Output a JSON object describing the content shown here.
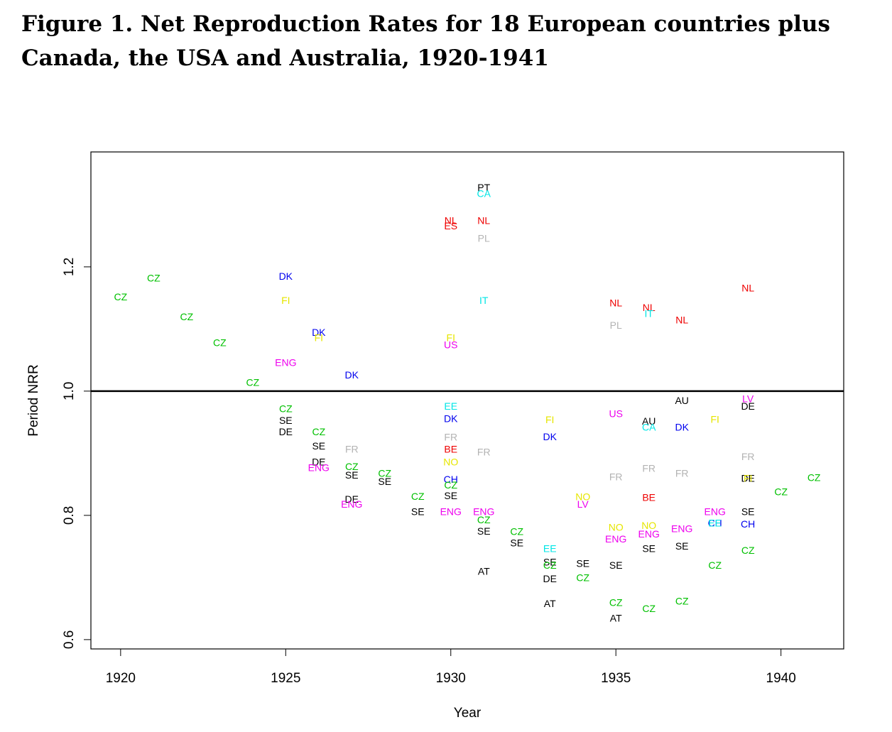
{
  "title": "Figure 1. Net Reproduction Rates for 18 European countries plus Canada, the USA and Australia, 1920-1941",
  "chart_data": {
    "type": "scatter",
    "title": "Figure 1. Net Reproduction Rates for 18 European countries plus Canada, the USA and Australia, 1920-1941",
    "xlabel": "Year",
    "ylabel": "Period NRR",
    "xlim": [
      1919.1,
      1941.9
    ],
    "ylim": [
      0.585,
      1.385
    ],
    "xticks": [
      1920,
      1925,
      1930,
      1935,
      1940
    ],
    "yticks": [
      0.6,
      0.8,
      1.0,
      1.2
    ],
    "ytick_labels": [
      "0.6",
      "0.8",
      "1.0",
      "1.2"
    ],
    "reference_line": 1.0,
    "grid": false,
    "legend": "none (country codes plotted as point labels)",
    "colors": {
      "CZ": "#00c000",
      "SE": "#000000",
      "DE": "#000000",
      "AT": "#000000",
      "AU": "#000000",
      "PT": "#000000",
      "DK": "#0000ee",
      "CH": "#0000ee",
      "FI": "#e6e600",
      "NO": "#e6e600",
      "ENG": "#ee00ee",
      "US": "#ee00ee",
      "LV": "#ee00ee",
      "NL": "#ee0000",
      "ES": "#ee0000",
      "BE": "#ee0000",
      "FR": "#b3b3b3",
      "PL": "#b3b3b3",
      "EE": "#00e6e6",
      "IT": "#00e6e6",
      "CA": "#00e6e6"
    },
    "points": [
      {
        "label": "CZ",
        "x": 1920,
        "y": 1.152
      },
      {
        "label": "CZ",
        "x": 1921,
        "y": 1.182
      },
      {
        "label": "CZ",
        "x": 1922,
        "y": 1.12
      },
      {
        "label": "CZ",
        "x": 1923,
        "y": 1.078
      },
      {
        "label": "CZ",
        "x": 1924,
        "y": 1.014
      },
      {
        "label": "DK",
        "x": 1925,
        "y": 1.185
      },
      {
        "label": "FI",
        "x": 1925,
        "y": 1.146
      },
      {
        "label": "ENG",
        "x": 1925,
        "y": 1.046
      },
      {
        "label": "CZ",
        "x": 1925,
        "y": 0.972
      },
      {
        "label": "SE",
        "x": 1925,
        "y": 0.953
      },
      {
        "label": "DE",
        "x": 1925,
        "y": 0.935
      },
      {
        "label": "DK",
        "x": 1926,
        "y": 1.095
      },
      {
        "label": "FI",
        "x": 1926,
        "y": 1.086
      },
      {
        "label": "CZ",
        "x": 1926,
        "y": 0.935
      },
      {
        "label": "SE",
        "x": 1926,
        "y": 0.912
      },
      {
        "label": "DE",
        "x": 1926,
        "y": 0.886
      },
      {
        "label": "ENG",
        "x": 1926,
        "y": 0.877
      },
      {
        "label": "DK",
        "x": 1927,
        "y": 1.026
      },
      {
        "label": "FR",
        "x": 1927,
        "y": 0.907
      },
      {
        "label": "CZ",
        "x": 1927,
        "y": 0.879
      },
      {
        "label": "SE",
        "x": 1927,
        "y": 0.865
      },
      {
        "label": "DE",
        "x": 1927,
        "y": 0.826
      },
      {
        "label": "ENG",
        "x": 1927,
        "y": 0.818
      },
      {
        "label": "CZ",
        "x": 1928,
        "y": 0.868
      },
      {
        "label": "SE",
        "x": 1928,
        "y": 0.855
      },
      {
        "label": "CZ",
        "x": 1929,
        "y": 0.831
      },
      {
        "label": "SE",
        "x": 1929,
        "y": 0.806
      },
      {
        "label": "NL",
        "x": 1930,
        "y": 1.275
      },
      {
        "label": "ES",
        "x": 1930,
        "y": 1.266
      },
      {
        "label": "FI",
        "x": 1930,
        "y": 1.086
      },
      {
        "label": "US",
        "x": 1930,
        "y": 1.075
      },
      {
        "label": "EE",
        "x": 1930,
        "y": 0.976
      },
      {
        "label": "DK",
        "x": 1930,
        "y": 0.956
      },
      {
        "label": "FR",
        "x": 1930,
        "y": 0.926
      },
      {
        "label": "BE",
        "x": 1930,
        "y": 0.907
      },
      {
        "label": "NO",
        "x": 1930,
        "y": 0.886
      },
      {
        "label": "CH",
        "x": 1930,
        "y": 0.858
      },
      {
        "label": "CZ",
        "x": 1930,
        "y": 0.849
      },
      {
        "label": "SE",
        "x": 1930,
        "y": 0.832
      },
      {
        "label": "ENG",
        "x": 1930,
        "y": 0.806
      },
      {
        "label": "PT",
        "x": 1931,
        "y": 1.328
      },
      {
        "label": "CA",
        "x": 1931,
        "y": 1.318
      },
      {
        "label": "NL",
        "x": 1931,
        "y": 1.275
      },
      {
        "label": "PL",
        "x": 1931,
        "y": 1.246
      },
      {
        "label": "IT",
        "x": 1931,
        "y": 1.146
      },
      {
        "label": "FR",
        "x": 1931,
        "y": 0.902
      },
      {
        "label": "ENG",
        "x": 1931,
        "y": 0.806
      },
      {
        "label": "CZ",
        "x": 1931,
        "y": 0.793
      },
      {
        "label": "SE",
        "x": 1931,
        "y": 0.775
      },
      {
        "label": "AT",
        "x": 1931,
        "y": 0.71
      },
      {
        "label": "CZ",
        "x": 1932,
        "y": 0.774
      },
      {
        "label": "SE",
        "x": 1932,
        "y": 0.756
      },
      {
        "label": "FI",
        "x": 1933,
        "y": 0.954
      },
      {
        "label": "DK",
        "x": 1933,
        "y": 0.927
      },
      {
        "label": "EE",
        "x": 1933,
        "y": 0.747
      },
      {
        "label": "SE",
        "x": 1933,
        "y": 0.725
      },
      {
        "label": "CZ",
        "x": 1933,
        "y": 0.72
      },
      {
        "label": "DE",
        "x": 1933,
        "y": 0.698
      },
      {
        "label": "AT",
        "x": 1933,
        "y": 0.658
      },
      {
        "label": "NO",
        "x": 1934,
        "y": 0.83
      },
      {
        "label": "LV",
        "x": 1934,
        "y": 0.818
      },
      {
        "label": "SE",
        "x": 1934,
        "y": 0.723
      },
      {
        "label": "CZ",
        "x": 1934,
        "y": 0.7
      },
      {
        "label": "NL",
        "x": 1935,
        "y": 1.142
      },
      {
        "label": "PL",
        "x": 1935,
        "y": 1.106
      },
      {
        "label": "US",
        "x": 1935,
        "y": 0.964
      },
      {
        "label": "FR",
        "x": 1935,
        "y": 0.862
      },
      {
        "label": "NO",
        "x": 1935,
        "y": 0.781
      },
      {
        "label": "ENG",
        "x": 1935,
        "y": 0.762
      },
      {
        "label": "SE",
        "x": 1935,
        "y": 0.72
      },
      {
        "label": "CZ",
        "x": 1935,
        "y": 0.66
      },
      {
        "label": "AT",
        "x": 1935,
        "y": 0.635
      },
      {
        "label": "NL",
        "x": 1936,
        "y": 1.135
      },
      {
        "label": "IT",
        "x": 1936,
        "y": 1.125
      },
      {
        "label": "AU",
        "x": 1936,
        "y": 0.952
      },
      {
        "label": "CA",
        "x": 1936,
        "y": 0.942
      },
      {
        "label": "FR",
        "x": 1936,
        "y": 0.876
      },
      {
        "label": "BE",
        "x": 1936,
        "y": 0.829
      },
      {
        "label": "NO",
        "x": 1936,
        "y": 0.784
      },
      {
        "label": "ENG",
        "x": 1936,
        "y": 0.77
      },
      {
        "label": "SE",
        "x": 1936,
        "y": 0.747
      },
      {
        "label": "CZ",
        "x": 1936,
        "y": 0.65
      },
      {
        "label": "NL",
        "x": 1937,
        "y": 1.115
      },
      {
        "label": "AU",
        "x": 1937,
        "y": 0.985
      },
      {
        "label": "DK",
        "x": 1937,
        "y": 0.942
      },
      {
        "label": "FR",
        "x": 1937,
        "y": 0.868
      },
      {
        "label": "ENG",
        "x": 1937,
        "y": 0.779
      },
      {
        "label": "SE",
        "x": 1937,
        "y": 0.751
      },
      {
        "label": "CZ",
        "x": 1937,
        "y": 0.662
      },
      {
        "label": "FI",
        "x": 1938,
        "y": 0.955
      },
      {
        "label": "ENG",
        "x": 1938,
        "y": 0.806
      },
      {
        "label": "CH",
        "x": 1938,
        "y": 0.788
      },
      {
        "label": "EE",
        "x": 1938,
        "y": 0.788
      },
      {
        "label": "CZ",
        "x": 1938,
        "y": 0.72
      },
      {
        "label": "NL",
        "x": 1939,
        "y": 1.166
      },
      {
        "label": "LV",
        "x": 1939,
        "y": 0.988
      },
      {
        "label": "DE",
        "x": 1939,
        "y": 0.976
      },
      {
        "label": "FR",
        "x": 1939,
        "y": 0.895
      },
      {
        "label": "DE",
        "x": 1939,
        "y": 0.86
      },
      {
        "label": "FI",
        "x": 1939,
        "y": 0.86
      },
      {
        "label": "SE",
        "x": 1939,
        "y": 0.806
      },
      {
        "label": "CH",
        "x": 1939,
        "y": 0.786
      },
      {
        "label": "CZ",
        "x": 1939,
        "y": 0.744
      },
      {
        "label": "CZ",
        "x": 1940,
        "y": 0.838
      },
      {
        "label": "CZ",
        "x": 1941,
        "y": 0.861
      }
    ]
  }
}
